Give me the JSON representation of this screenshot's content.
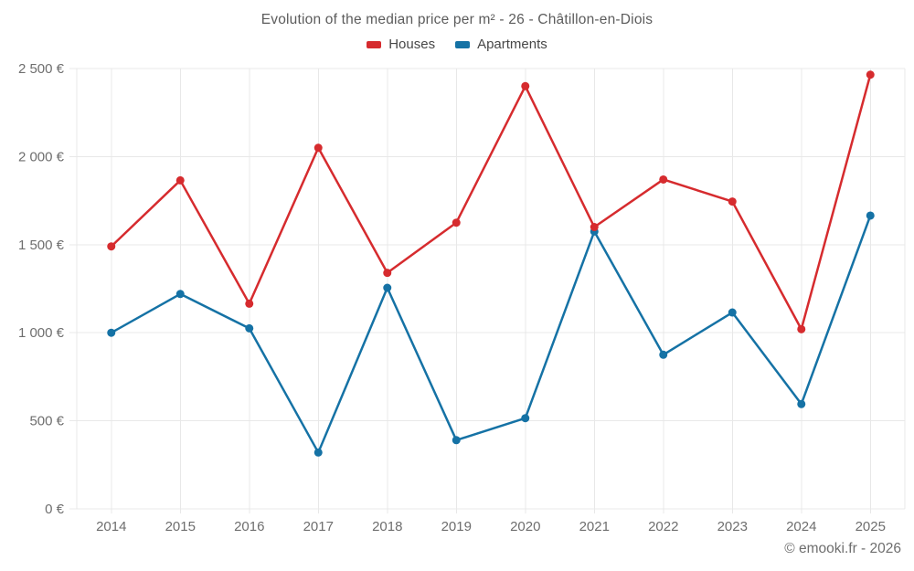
{
  "chart_data": {
    "type": "line",
    "title": "Evolution of the median price per m² - 26 - Châtillon-en-Diois",
    "categories": [
      "2014",
      "2015",
      "2016",
      "2017",
      "2018",
      "2019",
      "2020",
      "2021",
      "2022",
      "2023",
      "2024",
      "2025"
    ],
    "series": [
      {
        "name": "Houses",
        "color": "#d62b2e",
        "values": [
          1490,
          1865,
          1165,
          2050,
          1340,
          1625,
          2400,
          1600,
          1870,
          1745,
          1020,
          2465
        ]
      },
      {
        "name": "Apartments",
        "color": "#1572a5",
        "values": [
          1000,
          1220,
          1025,
          320,
          1255,
          390,
          515,
          1575,
          875,
          1115,
          595,
          1665
        ]
      }
    ],
    "xlabel": "",
    "ylabel": "",
    "ylim": [
      0,
      2500
    ],
    "y_ticks": [
      {
        "value": 0,
        "label": "0 €"
      },
      {
        "value": 500,
        "label": "500 €"
      },
      {
        "value": 1000,
        "label": "1 000 €"
      },
      {
        "value": 1500,
        "label": "1 500 €"
      },
      {
        "value": 2000,
        "label": "2 000 €"
      },
      {
        "value": 2500,
        "label": "2 500 €"
      }
    ],
    "grid": true,
    "legend_position": "top",
    "grid_color": "#e8e8e8"
  },
  "footer": {
    "copyright": "© emooki.fr - 2026"
  }
}
